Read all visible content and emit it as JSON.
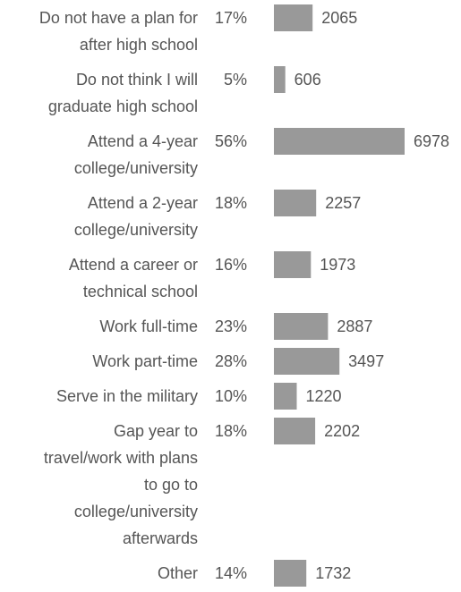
{
  "chart_data": {
    "type": "bar",
    "orientation": "horizontal",
    "categories": [
      [
        "Do not have a plan for",
        "after high school"
      ],
      [
        "Do not think I will",
        "graduate high school"
      ],
      [
        "Attend a 4-year",
        "college/university"
      ],
      [
        "Attend a 2-year",
        "college/university"
      ],
      [
        "Attend a career or",
        "technical school"
      ],
      [
        "Work full-time"
      ],
      [
        "Work part-time"
      ],
      [
        "Serve in the military"
      ],
      [
        "Gap year to",
        "travel/work with plans",
        "to go to",
        "college/university",
        "afterwards"
      ],
      [
        "Other"
      ]
    ],
    "percents": [
      "17%",
      "5%",
      "56%",
      "18%",
      "16%",
      "23%",
      "28%",
      "10%",
      "18%",
      "14%"
    ],
    "values": [
      2065,
      606,
      6978,
      2257,
      1973,
      2887,
      3497,
      1220,
      2202,
      1732
    ],
    "bar_color": "#999999",
    "text_color": "#555555",
    "grid": false,
    "legend": "none"
  }
}
